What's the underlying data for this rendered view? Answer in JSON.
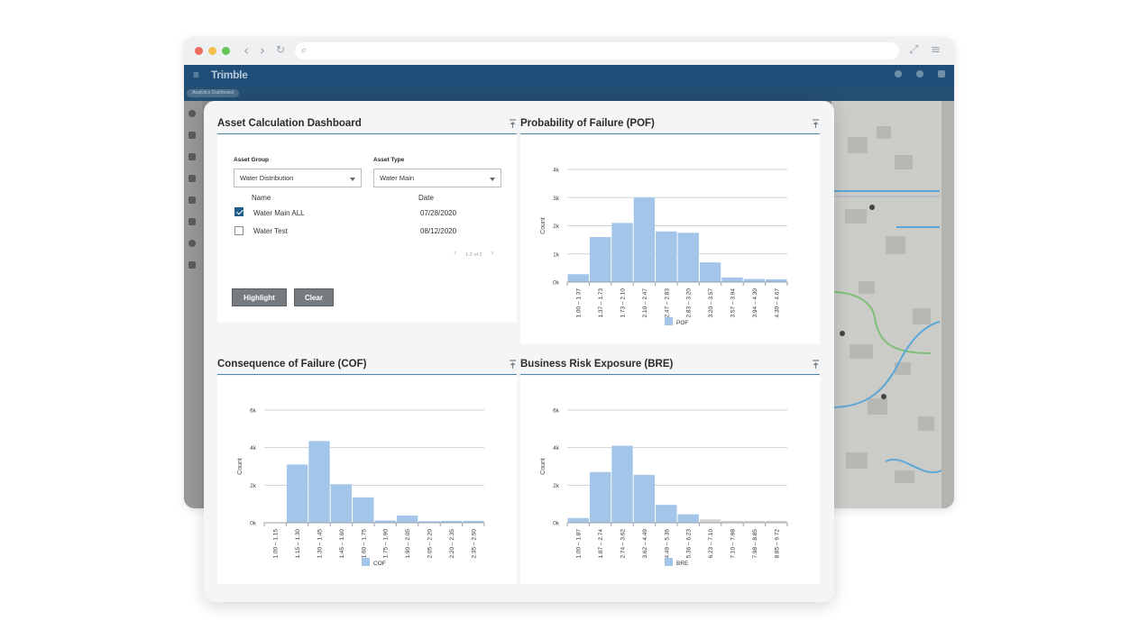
{
  "browser": {
    "window_dots": [
      "#ee6b60",
      "#f5bf4f",
      "#62c554"
    ],
    "nav_icons": [
      "back-icon",
      "forward-icon",
      "reload-icon"
    ],
    "url": "",
    "right_icons": [
      "expand-icon",
      "hamburger-menu-icon"
    ]
  },
  "app": {
    "logo": "Trimble",
    "nav_color": "#1f4f78",
    "subbar_chip": "Analytics Dashboard"
  },
  "dashboard": {
    "title": "Asset Calculation Dashboard",
    "asset_group_label": "Asset Group",
    "asset_group_value": "Water Distribution",
    "asset_type_label": "Asset Type",
    "asset_type_value": "Water Main",
    "table_headers": {
      "name": "Name",
      "date": "Date"
    },
    "rows": [
      {
        "name": "Water Main ALL",
        "date": "07/28/2020",
        "checked": true
      },
      {
        "name": "Water Test",
        "date": "08/12/2020",
        "checked": false
      }
    ],
    "pager": "1-2 of 2",
    "highlight_button": "Highlight",
    "clear_button": "Clear"
  },
  "colors": {
    "bar": "#a3c5ea",
    "bar_muted": "#d4d4d4",
    "rule": "#4c86a8",
    "checkbox": "#1f5d86"
  },
  "chart_data": [
    {
      "type": "bar",
      "title": "Probability of Failure (POF)",
      "ylabel": "Count",
      "ylim": [
        0,
        4000
      ],
      "yticks": [
        "0k",
        "1k",
        "2k",
        "3k",
        "4k"
      ],
      "categories": [
        "1.00 – 1.37",
        "1.37 – 1.73",
        "1.73 – 2.10",
        "2.10 – 2.47",
        "2.47 – 2.83",
        "2.83 – 3.20",
        "3.20 – 3.57",
        "3.57 – 3.94",
        "3.94 – 4.30",
        "4.30 – 4.67"
      ],
      "series": [
        {
          "name": "POF",
          "values": [
            280,
            1600,
            2100,
            3000,
            1800,
            1750,
            700,
            160,
            110,
            100
          ]
        }
      ],
      "grid": true,
      "legend": "bottom"
    },
    {
      "type": "bar",
      "title": "Consequence of Failure (COF)",
      "ylabel": "Count",
      "ylim": [
        0,
        6000
      ],
      "yticks": [
        "0k",
        "2k",
        "4k",
        "6k"
      ],
      "categories": [
        "1.00 – 1.15",
        "1.15 – 1.30",
        "1.30 – 1.45",
        "1.45 – 1.60",
        "1.60 – 1.75",
        "1.75 – 1.90",
        "1.90 – 2.05",
        "2.05 – 2.20",
        "2.20 – 2.35",
        "2.35 – 2.50"
      ],
      "series": [
        {
          "name": "COF",
          "values": [
            0,
            3100,
            4350,
            2050,
            1350,
            120,
            380,
            80,
            100,
            100
          ]
        }
      ],
      "grid": true,
      "legend": "bottom"
    },
    {
      "type": "bar",
      "title": "Business Risk Exposure (BRE)",
      "ylabel": "Count",
      "ylim": [
        0,
        6000
      ],
      "yticks": [
        "0k",
        "2k",
        "4k",
        "6k"
      ],
      "categories": [
        "1.00 – 1.87",
        "1.87 – 2.74",
        "2.74 – 3.62",
        "3.62 – 4.49",
        "4.49 – 5.36",
        "5.36 – 6.23",
        "6.23 – 7.10",
        "7.10 – 7.98",
        "7.98 – 8.85",
        "8.85 – 9.72"
      ],
      "series": [
        {
          "name": "BRE",
          "values": [
            250,
            2700,
            4100,
            2550,
            950,
            450,
            180,
            100,
            100,
            100
          ]
        }
      ],
      "muted_from_index": 6,
      "grid": true,
      "legend": "bottom"
    }
  ]
}
